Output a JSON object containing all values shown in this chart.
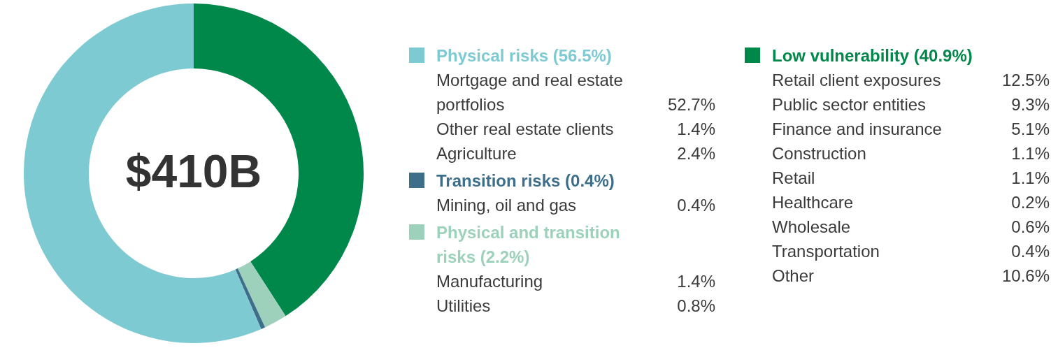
{
  "chart_data": {
    "type": "donut",
    "categories": [
      "Low vulnerability (40.9%)",
      "Physical and transition risks (2.2%)",
      "Transition risks (0.4%)",
      "Physical risks (56.5%)"
    ],
    "values": [
      40.9,
      2.2,
      0.4,
      56.5
    ],
    "colors": [
      "#00884a",
      "#9dd1bb",
      "#3d6e8a",
      "#7ecad2"
    ],
    "legend": "right",
    "annotations": [
      "$410B",
      "Retail client exposures",
      "12.5%",
      "Public sector entities",
      "9.3%",
      "Finance and insurance",
      "5.1%",
      "Construction",
      "1.1%",
      "Retail",
      "1.1%",
      "Healthcare",
      "0.2%",
      "Wholesale",
      "0.6%",
      "Transportation",
      "0.4%",
      "Other",
      "10.6%",
      "Manufacturing",
      "1.4%",
      "Utilities",
      "0.8%",
      "Mining, oil and gas",
      "0.4%",
      "Mortgage and real estate portfolios",
      "52.7%",
      "Other real estate clients",
      "1.4%",
      "Agriculture",
      "2.4%"
    ]
  }
}
